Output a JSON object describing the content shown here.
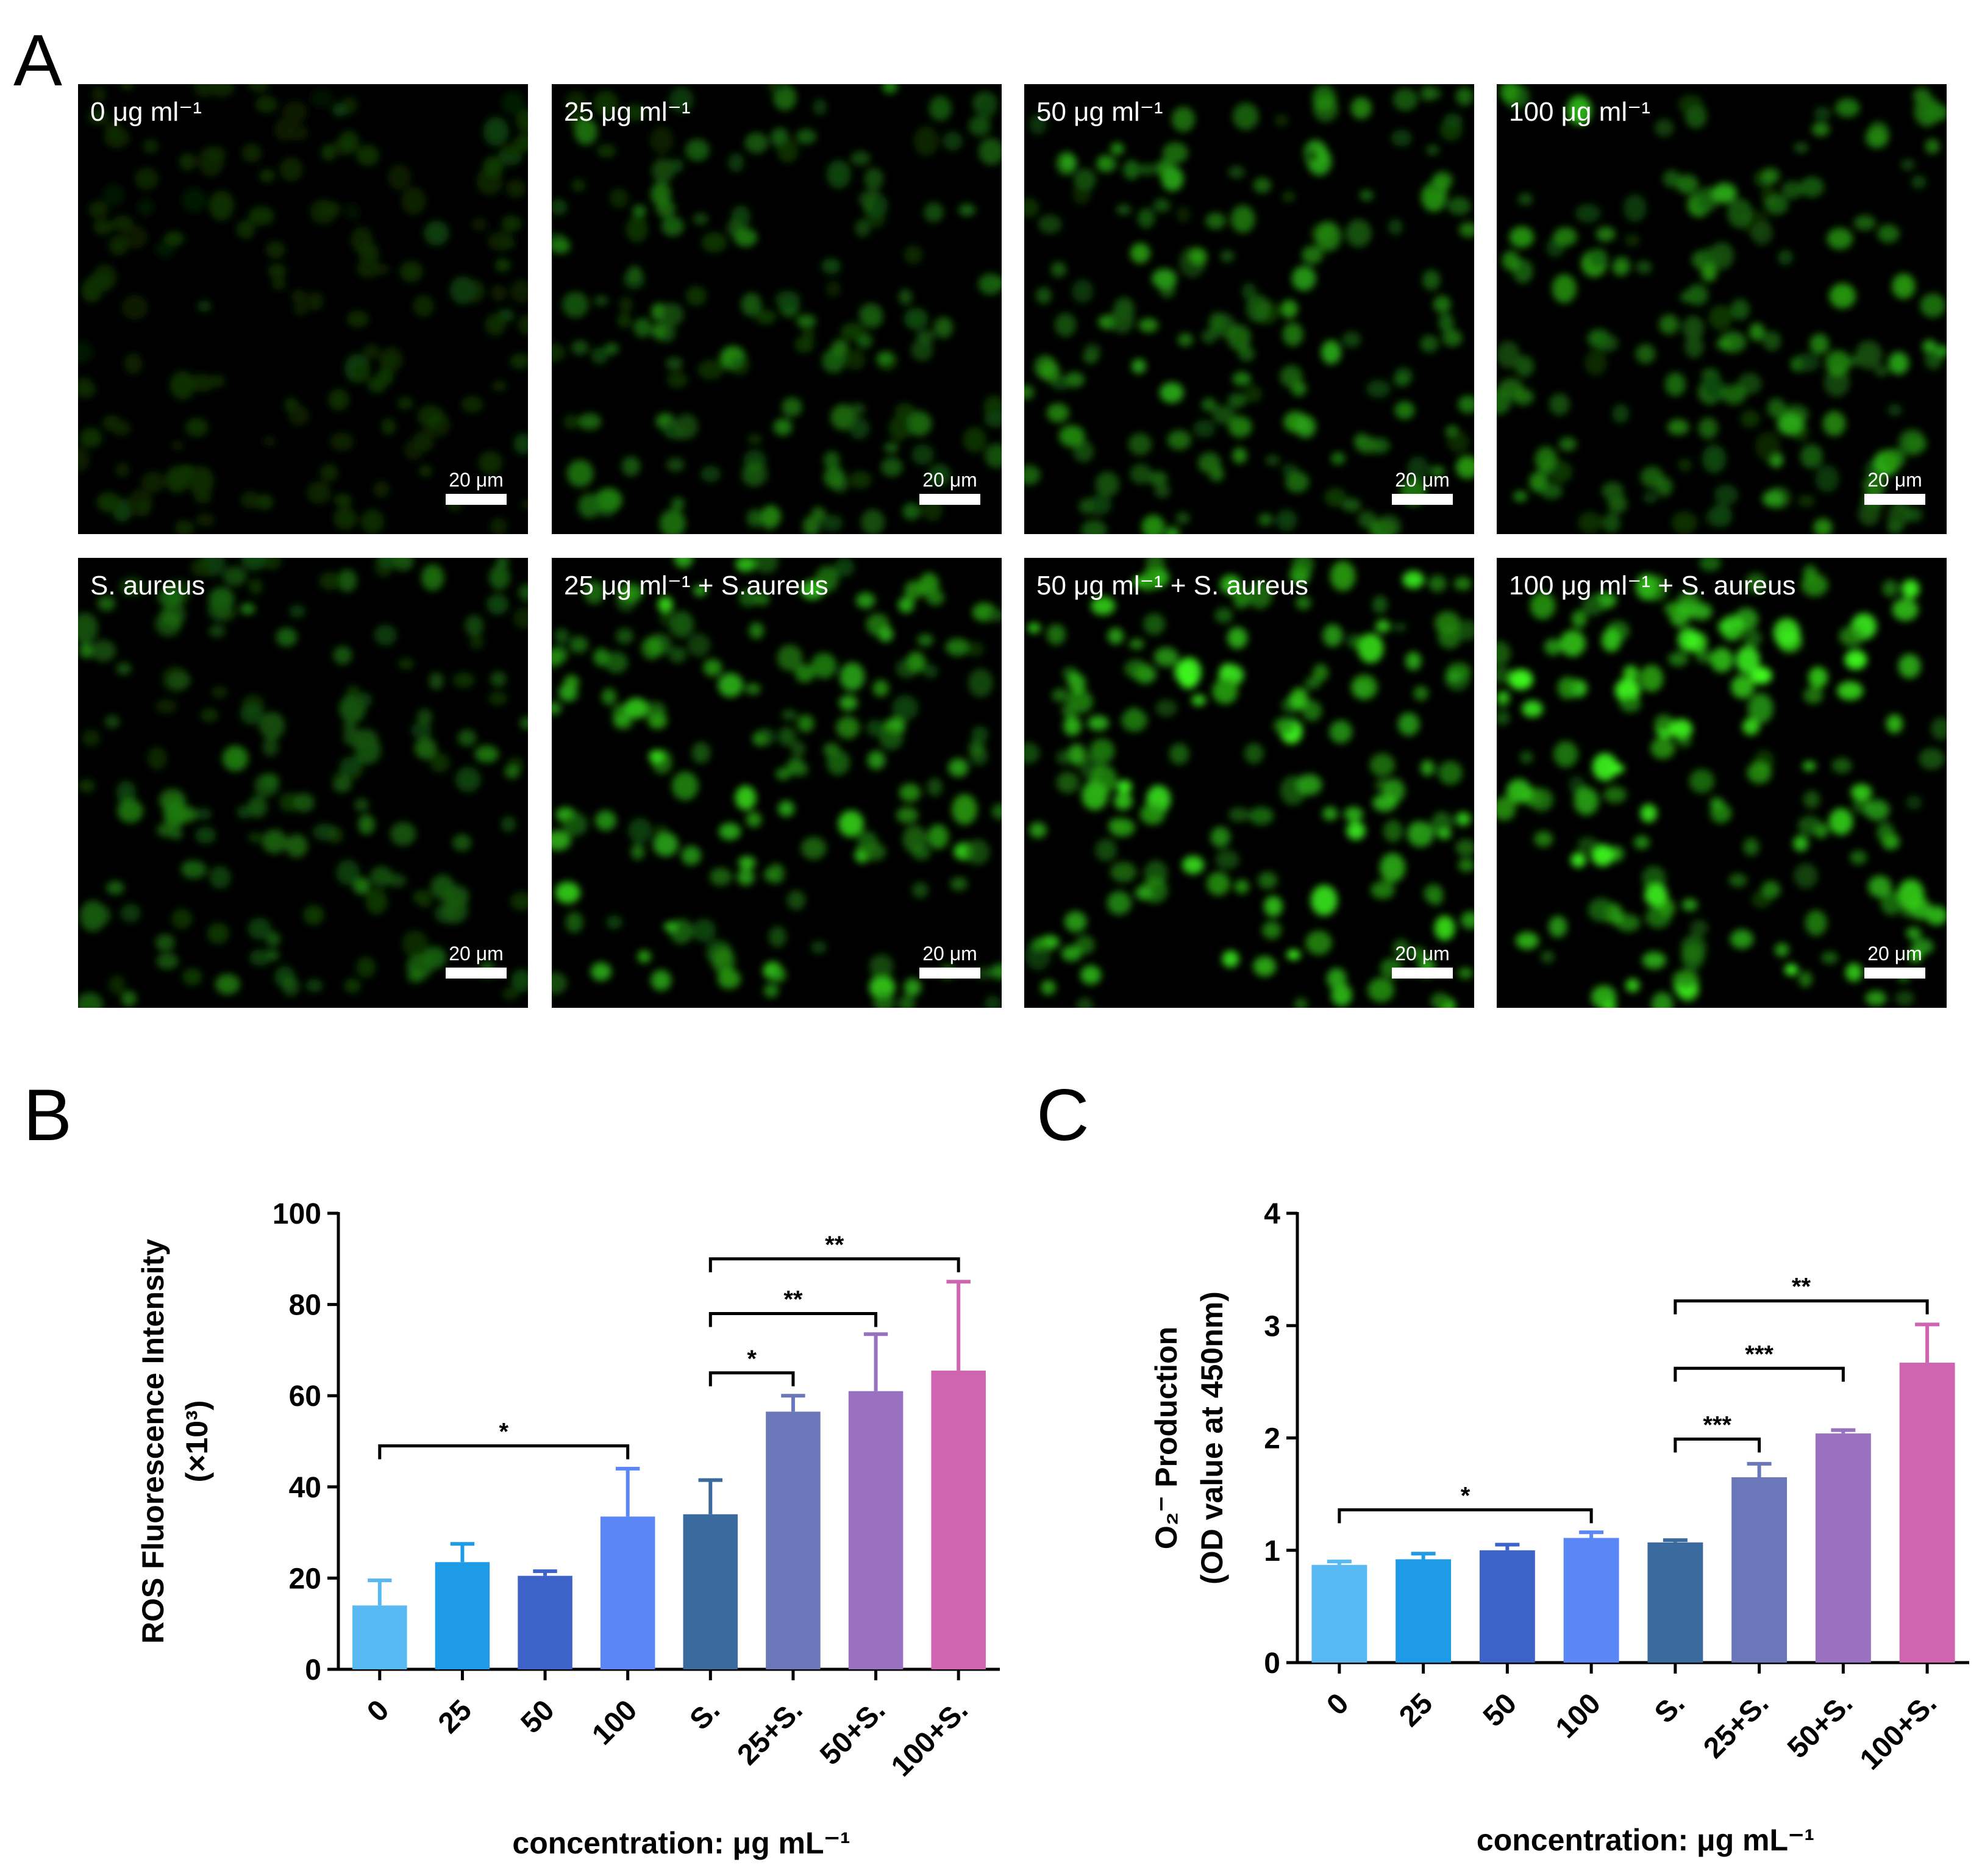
{
  "panel_letters": [
    "A",
    "B",
    "C"
  ],
  "micrographs": [
    {
      "label": "0 μg ml⁻¹",
      "scale": "20 μm",
      "brightness": 0.18,
      "row": 0,
      "col": 0
    },
    {
      "label": "25 μg ml⁻¹",
      "scale": "20 μm",
      "brightness": 0.45,
      "row": 0,
      "col": 1
    },
    {
      "label": "50 μg ml⁻¹",
      "scale": "20 μm",
      "brightness": 0.6,
      "row": 0,
      "col": 2
    },
    {
      "label": "100 μg ml⁻¹",
      "scale": "20 μm",
      "brightness": 0.62,
      "row": 0,
      "col": 3
    },
    {
      "label": "S. aureus",
      "scale": "20 μm",
      "brightness": 0.45,
      "row": 1,
      "col": 0
    },
    {
      "label": "25 μg ml⁻¹ + S.aureus",
      "scale": "20 μm",
      "brightness": 0.78,
      "row": 1,
      "col": 1
    },
    {
      "label": "50 μg ml⁻¹ + S. aureus",
      "scale": "20 μm",
      "brightness": 0.92,
      "row": 1,
      "col": 2
    },
    {
      "label": "100 μg ml⁻¹ + S. aureus",
      "scale": "20 μm",
      "brightness": 0.97,
      "row": 1,
      "col": 3
    }
  ],
  "colors": [
    "#57b8f2",
    "#1e9be6",
    "#3d63c9",
    "#5a87f5",
    "#3a6a9e",
    "#6a77b8",
    "#9a70c0",
    "#cf65b0"
  ],
  "chart_data": [
    {
      "type": "bar",
      "panel": "B",
      "categories": [
        "0",
        "25",
        "50",
        "100",
        "S.",
        "25+S.",
        "50+S.",
        "100+S."
      ],
      "values": [
        14,
        23.5,
        20.5,
        33.5,
        34,
        56.5,
        61,
        65.5
      ],
      "errors": [
        5.5,
        4,
        1,
        10.5,
        7.5,
        3.5,
        12.5,
        19.5
      ],
      "ylabel_line1": "ROS Fluorescence Intensity",
      "ylabel_line2": "(×10³)",
      "xlabel": "concentration: μg mL⁻¹",
      "ylim": [
        0,
        100
      ],
      "yticks": [
        "0",
        "20",
        "40",
        "60",
        "80",
        "100"
      ],
      "significance": [
        {
          "from": 0,
          "to": 3,
          "label": "*",
          "y": 49
        },
        {
          "from": 4,
          "to": 5,
          "label": "*",
          "y": 65
        },
        {
          "from": 4,
          "to": 6,
          "label": "**",
          "y": 78
        },
        {
          "from": 4,
          "to": 7,
          "label": "**",
          "y": 90
        }
      ]
    },
    {
      "type": "bar",
      "panel": "C",
      "categories": [
        "0",
        "25",
        "50",
        "100",
        "S.",
        "25+S.",
        "50+S.",
        "100+S."
      ],
      "values": [
        0.87,
        0.92,
        1.0,
        1.11,
        1.07,
        1.65,
        2.04,
        2.67
      ],
      "errors": [
        0.03,
        0.05,
        0.05,
        0.05,
        0.02,
        0.12,
        0.03,
        0.34
      ],
      "ylabel_line1": "O₂⁻ Production",
      "ylabel_line2": "(OD value at 450nm)",
      "xlabel": "concentration: μg mL⁻¹",
      "ylim": [
        0,
        4
      ],
      "yticks": [
        "0",
        "1",
        "2",
        "3",
        "4"
      ],
      "significance": [
        {
          "from": 0,
          "to": 3,
          "label": "*",
          "y": 1.36
        },
        {
          "from": 4,
          "to": 5,
          "label": "***",
          "y": 1.99
        },
        {
          "from": 4,
          "to": 6,
          "label": "***",
          "y": 2.62
        },
        {
          "from": 4,
          "to": 7,
          "label": "**",
          "y": 3.22
        }
      ]
    }
  ]
}
